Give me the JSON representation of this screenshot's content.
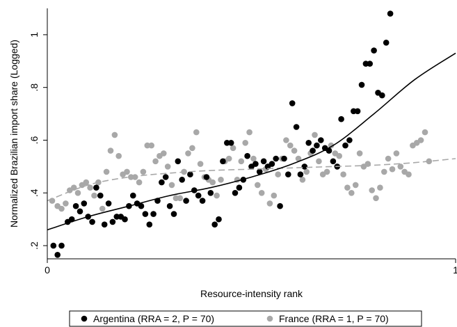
{
  "chart_data": {
    "type": "scatter",
    "xlabel": "Resource-intensity rank",
    "ylabel": "Normalized Brazilian import share (Logged)",
    "xlim": [
      0,
      1
    ],
    "ylim": [
      0.15,
      1.1
    ],
    "x_ticks": [
      {
        "value": 0,
        "label": "0"
      },
      {
        "value": 1,
        "label": "1"
      }
    ],
    "y_ticks": [
      {
        "value": 0.2,
        "label": ".2"
      },
      {
        "value": 0.4,
        "label": ".4"
      },
      {
        "value": 0.6,
        "label": ".6"
      },
      {
        "value": 0.8,
        "label": ".8"
      },
      {
        "value": 1.0,
        "label": "1"
      }
    ],
    "legend_position": "bottom",
    "series": [
      {
        "name": "Argentina (RRA = 2, P = 70)",
        "color": "#000000",
        "marker": "circle",
        "points": [
          [
            0.015,
            0.2
          ],
          [
            0.025,
            0.165
          ],
          [
            0.035,
            0.2
          ],
          [
            0.05,
            0.29
          ],
          [
            0.06,
            0.3
          ],
          [
            0.07,
            0.35
          ],
          [
            0.08,
            0.33
          ],
          [
            0.09,
            0.36
          ],
          [
            0.1,
            0.31
          ],
          [
            0.11,
            0.29
          ],
          [
            0.12,
            0.42
          ],
          [
            0.13,
            0.39
          ],
          [
            0.14,
            0.28
          ],
          [
            0.15,
            0.36
          ],
          [
            0.16,
            0.29
          ],
          [
            0.17,
            0.31
          ],
          [
            0.18,
            0.31
          ],
          [
            0.19,
            0.3
          ],
          [
            0.2,
            0.35
          ],
          [
            0.21,
            0.39
          ],
          [
            0.22,
            0.36
          ],
          [
            0.23,
            0.35
          ],
          [
            0.24,
            0.32
          ],
          [
            0.25,
            0.28
          ],
          [
            0.26,
            0.32
          ],
          [
            0.27,
            0.37
          ],
          [
            0.28,
            0.44
          ],
          [
            0.29,
            0.46
          ],
          [
            0.3,
            0.35
          ],
          [
            0.31,
            0.32
          ],
          [
            0.32,
            0.52
          ],
          [
            0.33,
            0.45
          ],
          [
            0.34,
            0.37
          ],
          [
            0.35,
            0.47
          ],
          [
            0.36,
            0.41
          ],
          [
            0.37,
            0.39
          ],
          [
            0.38,
            0.37
          ],
          [
            0.39,
            0.46
          ],
          [
            0.4,
            0.4
          ],
          [
            0.41,
            0.28
          ],
          [
            0.42,
            0.3
          ],
          [
            0.43,
            0.52
          ],
          [
            0.44,
            0.59
          ],
          [
            0.45,
            0.59
          ],
          [
            0.46,
            0.4
          ],
          [
            0.47,
            0.42
          ],
          [
            0.48,
            0.45
          ],
          [
            0.49,
            0.54
          ],
          [
            0.5,
            0.5
          ],
          [
            0.51,
            0.51
          ],
          [
            0.52,
            0.48
          ],
          [
            0.53,
            0.52
          ],
          [
            0.54,
            0.5
          ],
          [
            0.55,
            0.51
          ],
          [
            0.56,
            0.53
          ],
          [
            0.57,
            0.35
          ],
          [
            0.58,
            0.53
          ],
          [
            0.59,
            0.47
          ],
          [
            0.6,
            0.74
          ],
          [
            0.61,
            0.65
          ],
          [
            0.62,
            0.47
          ],
          [
            0.63,
            0.5
          ],
          [
            0.64,
            0.59
          ],
          [
            0.65,
            0.56
          ],
          [
            0.66,
            0.58
          ],
          [
            0.67,
            0.6
          ],
          [
            0.68,
            0.57
          ],
          [
            0.69,
            0.56
          ],
          [
            0.7,
            0.52
          ],
          [
            0.71,
            0.5
          ],
          [
            0.72,
            0.68
          ],
          [
            0.73,
            0.58
          ],
          [
            0.74,
            0.6
          ],
          [
            0.75,
            0.71
          ],
          [
            0.76,
            0.71
          ],
          [
            0.77,
            0.81
          ],
          [
            0.78,
            0.89
          ],
          [
            0.79,
            0.89
          ],
          [
            0.8,
            0.94
          ],
          [
            0.81,
            0.78
          ],
          [
            0.82,
            0.77
          ],
          [
            0.83,
            0.97
          ],
          [
            0.84,
            1.08
          ]
        ],
        "fit_line": [
          [
            0.0,
            0.26
          ],
          [
            0.1,
            0.31
          ],
          [
            0.2,
            0.35
          ],
          [
            0.3,
            0.39
          ],
          [
            0.4,
            0.42
          ],
          [
            0.5,
            0.46
          ],
          [
            0.6,
            0.51
          ],
          [
            0.7,
            0.58
          ],
          [
            0.8,
            0.7
          ],
          [
            0.9,
            0.83
          ],
          [
            1.0,
            0.93
          ]
        ]
      },
      {
        "name": "France (RRA = 1, P = 70)",
        "color": "#a8a8a8",
        "marker": "circle",
        "points": [
          [
            0.012,
            0.37
          ],
          [
            0.025,
            0.35
          ],
          [
            0.035,
            0.34
          ],
          [
            0.045,
            0.36
          ],
          [
            0.055,
            0.41
          ],
          [
            0.065,
            0.42
          ],
          [
            0.075,
            0.4
          ],
          [
            0.085,
            0.43
          ],
          [
            0.095,
            0.44
          ],
          [
            0.105,
            0.42
          ],
          [
            0.115,
            0.39
          ],
          [
            0.125,
            0.44
          ],
          [
            0.135,
            0.34
          ],
          [
            0.145,
            0.48
          ],
          [
            0.155,
            0.56
          ],
          [
            0.165,
            0.62
          ],
          [
            0.175,
            0.54
          ],
          [
            0.185,
            0.47
          ],
          [
            0.195,
            0.48
          ],
          [
            0.205,
            0.46
          ],
          [
            0.215,
            0.46
          ],
          [
            0.225,
            0.44
          ],
          [
            0.235,
            0.48
          ],
          [
            0.245,
            0.58
          ],
          [
            0.255,
            0.58
          ],
          [
            0.265,
            0.52
          ],
          [
            0.275,
            0.54
          ],
          [
            0.285,
            0.55
          ],
          [
            0.295,
            0.5
          ],
          [
            0.305,
            0.43
          ],
          [
            0.315,
            0.38
          ],
          [
            0.325,
            0.38
          ],
          [
            0.335,
            0.48
          ],
          [
            0.345,
            0.55
          ],
          [
            0.355,
            0.57
          ],
          [
            0.365,
            0.63
          ],
          [
            0.375,
            0.51
          ],
          [
            0.385,
            0.46
          ],
          [
            0.395,
            0.45
          ],
          [
            0.405,
            0.44
          ],
          [
            0.415,
            0.39
          ],
          [
            0.425,
            0.45
          ],
          [
            0.435,
            0.52
          ],
          [
            0.445,
            0.53
          ],
          [
            0.455,
            0.57
          ],
          [
            0.465,
            0.45
          ],
          [
            0.475,
            0.52
          ],
          [
            0.485,
            0.59
          ],
          [
            0.495,
            0.63
          ],
          [
            0.505,
            0.53
          ],
          [
            0.515,
            0.43
          ],
          [
            0.525,
            0.4
          ],
          [
            0.535,
            0.49
          ],
          [
            0.545,
            0.36
          ],
          [
            0.555,
            0.39
          ],
          [
            0.565,
            0.47
          ],
          [
            0.575,
            0.53
          ],
          [
            0.585,
            0.6
          ],
          [
            0.595,
            0.58
          ],
          [
            0.605,
            0.56
          ],
          [
            0.615,
            0.53
          ],
          [
            0.625,
            0.45
          ],
          [
            0.635,
            0.48
          ],
          [
            0.645,
            0.55
          ],
          [
            0.655,
            0.62
          ],
          [
            0.665,
            0.52
          ],
          [
            0.675,
            0.47
          ],
          [
            0.685,
            0.48
          ],
          [
            0.695,
            0.58
          ],
          [
            0.705,
            0.55
          ],
          [
            0.715,
            0.54
          ],
          [
            0.725,
            0.47
          ],
          [
            0.735,
            0.42
          ],
          [
            0.745,
            0.4
          ],
          [
            0.755,
            0.43
          ],
          [
            0.765,
            0.55
          ],
          [
            0.775,
            0.5
          ],
          [
            0.785,
            0.51
          ],
          [
            0.795,
            0.41
          ],
          [
            0.805,
            0.38
          ],
          [
            0.815,
            0.42
          ],
          [
            0.825,
            0.48
          ],
          [
            0.835,
            0.53
          ],
          [
            0.845,
            0.49
          ],
          [
            0.855,
            0.55
          ],
          [
            0.865,
            0.5
          ],
          [
            0.875,
            0.48
          ],
          [
            0.885,
            0.47
          ],
          [
            0.895,
            0.58
          ],
          [
            0.905,
            0.59
          ],
          [
            0.915,
            0.6
          ],
          [
            0.925,
            0.63
          ],
          [
            0.935,
            0.52
          ]
        ],
        "fit_line": [
          [
            0.0,
            0.37
          ],
          [
            0.1,
            0.43
          ],
          [
            0.2,
            0.46
          ],
          [
            0.3,
            0.475
          ],
          [
            0.4,
            0.485
          ],
          [
            0.5,
            0.49
          ],
          [
            0.6,
            0.495
          ],
          [
            0.7,
            0.5
          ],
          [
            0.8,
            0.505
          ],
          [
            0.9,
            0.515
          ],
          [
            1.0,
            0.53
          ]
        ]
      }
    ]
  }
}
